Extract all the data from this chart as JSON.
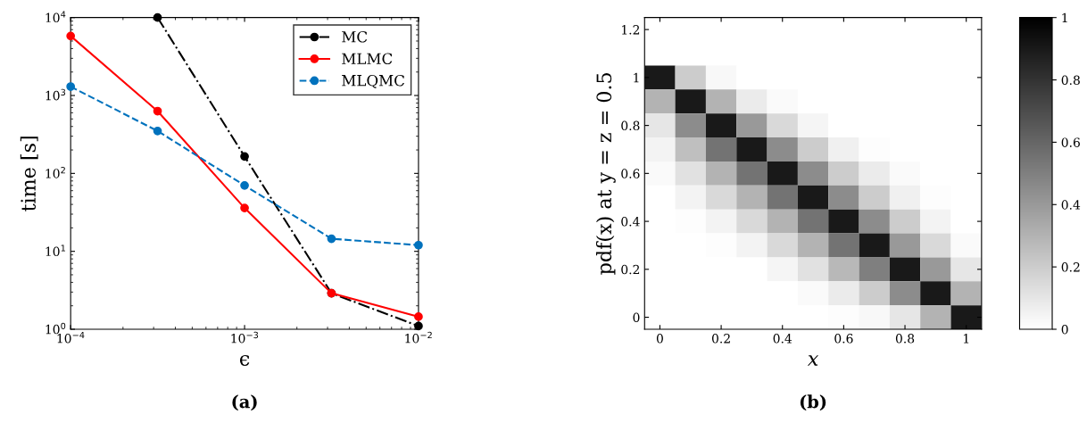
{
  "chart_data": [
    {
      "type": "line",
      "xlabel": "ϵ",
      "ylabel": "time [s]",
      "log": "xy",
      "xlim": [
        0.0001,
        0.01
      ],
      "ylim": [
        1,
        10000
      ],
      "xticks": [
        {
          "value": 0.0001,
          "label": "10$^{−4}$"
        },
        {
          "value": 0.001,
          "label": "10$^{−3}$"
        },
        {
          "value": 0.01,
          "label": "10$^{−2}$"
        }
      ],
      "yticks": [
        {
          "value": 1,
          "label": "10$^{0}$"
        },
        {
          "value": 10,
          "label": "10$^{1}$"
        },
        {
          "value": 100,
          "label": "10$^{2}$"
        },
        {
          "value": 1000,
          "label": "10$^{3}$"
        },
        {
          "value": 10000,
          "label": "10$^{4}$"
        }
      ],
      "marker": "circle",
      "legend": "top right",
      "grid": false,
      "series": [
        {
          "name": "MC",
          "color": "#000000",
          "line_style": "dashdot",
          "x": [
            0.000316,
            0.001,
            0.00316,
            0.01
          ],
          "values": [
            10000,
            165,
            2.9,
            1.1
          ]
        },
        {
          "name": "MLMC",
          "color": "#ff0000",
          "line_style": "solid",
          "x": [
            0.0001,
            0.000316,
            0.001,
            0.00316,
            0.01
          ],
          "values": [
            5800,
            630,
            36,
            2.9,
            1.45
          ]
        },
        {
          "name": "MLQMC",
          "color": "#0072bd",
          "line_style": "dashed",
          "x": [
            0.0001,
            0.000316,
            0.001,
            0.00316,
            0.01
          ],
          "values": [
            1300,
            350,
            70,
            14.5,
            12
          ]
        }
      ],
      "annotations": [
        "(a)"
      ]
    },
    {
      "type": "heatmap",
      "xlabel": "x",
      "ylabel": "pdf(x) at y = z = 0.5",
      "clim": [
        0,
        1
      ],
      "cticks": [
        0,
        0.2,
        0.4,
        0.6,
        0.8,
        1
      ],
      "categories": [
        "0",
        null,
        "0.2",
        null,
        "0.4",
        null,
        "0.6",
        null,
        "0.8",
        null,
        "1"
      ],
      "y_categories": [
        "1.2",
        null,
        "1",
        null,
        "0.8",
        null,
        "0.6",
        null,
        "0.4",
        null,
        "0.2",
        null,
        "0"
      ],
      "cells": [
        [
          0,
          0,
          0,
          0,
          0,
          0,
          0,
          0,
          0,
          0,
          0
        ],
        [
          0,
          0,
          0,
          0,
          0,
          0,
          0,
          0,
          0,
          0,
          0
        ],
        [
          0.9,
          0.2,
          0.03,
          0,
          0,
          0,
          0,
          0,
          0,
          0,
          0
        ],
        [
          0.3,
          0.9,
          0.3,
          0.08,
          0.02,
          0,
          0,
          0,
          0,
          0,
          0
        ],
        [
          0.1,
          0.45,
          0.9,
          0.4,
          0.15,
          0.04,
          0,
          0,
          0,
          0,
          0
        ],
        [
          0.05,
          0.25,
          0.55,
          0.9,
          0.45,
          0.2,
          0.06,
          0.01,
          0,
          0,
          0
        ],
        [
          0.02,
          0.12,
          0.3,
          0.55,
          0.9,
          0.45,
          0.2,
          0.08,
          0.02,
          0,
          0
        ],
        [
          0,
          0.05,
          0.15,
          0.3,
          0.55,
          0.9,
          0.45,
          0.2,
          0.06,
          0.01,
          0
        ],
        [
          0,
          0.01,
          0.05,
          0.15,
          0.3,
          0.55,
          0.9,
          0.45,
          0.2,
          0.05,
          0
        ],
        [
          0,
          0,
          0.01,
          0.05,
          0.15,
          0.3,
          0.55,
          0.9,
          0.4,
          0.15,
          0.02
        ],
        [
          0,
          0,
          0,
          0,
          0.04,
          0.12,
          0.28,
          0.5,
          0.9,
          0.4,
          0.1
        ],
        [
          0,
          0,
          0,
          0,
          0,
          0.02,
          0.08,
          0.2,
          0.45,
          0.9,
          0.3
        ],
        [
          0,
          0,
          0,
          0,
          0,
          0,
          0.01,
          0.03,
          0.1,
          0.3,
          0.9
        ]
      ],
      "annotations": [
        "(b)"
      ]
    }
  ]
}
